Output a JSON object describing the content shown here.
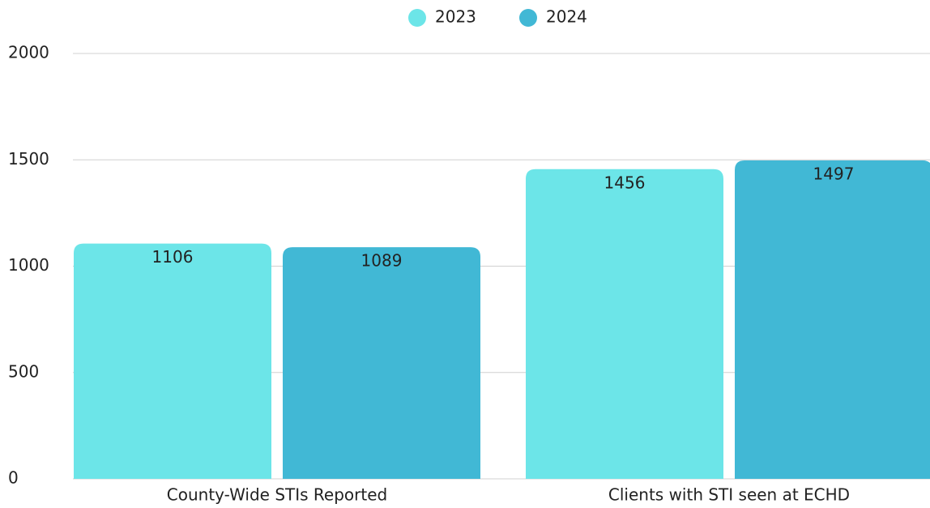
{
  "chart_data": {
    "type": "bar",
    "categories": [
      "County-Wide STIs Reported",
      "Clients with STI seen at ECHD"
    ],
    "series": [
      {
        "name": "2023",
        "color": "#6ce5e8",
        "values": [
          1106,
          1456
        ]
      },
      {
        "name": "2024",
        "color": "#41b8d5",
        "values": [
          1089,
          1497
        ]
      }
    ],
    "ylim": [
      0,
      2000
    ],
    "yticks": [
      0,
      500,
      1000,
      1500,
      2000
    ],
    "grid": true,
    "legend": "top"
  }
}
